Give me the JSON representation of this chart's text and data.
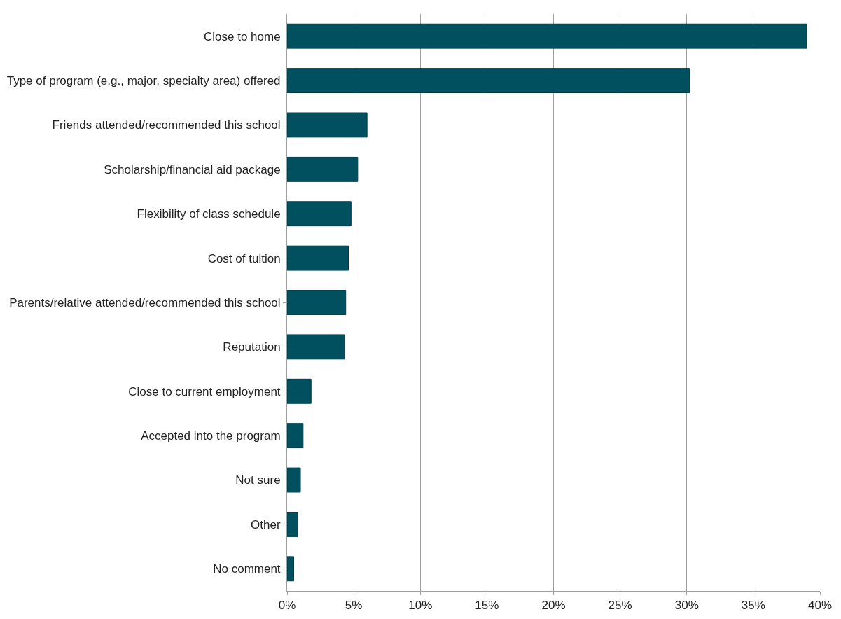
{
  "chart_data": {
    "type": "bar",
    "orientation": "horizontal",
    "categories": [
      "Close to home",
      "Type of program (e.g., major, specialty area) offered",
      "Friends attended/recommended this school",
      "Scholarship/financial aid package",
      "Flexibility of class schedule",
      "Cost of tuition",
      "Parents/relative attended/recommended this school",
      "Reputation",
      "Close to current employment",
      "Accepted into the program",
      "Not sure",
      "Other",
      "No comment"
    ],
    "values": [
      39,
      30.2,
      6,
      5.3,
      4.8,
      4.6,
      4.4,
      4.3,
      1.8,
      1.2,
      1,
      0.8,
      0.5
    ],
    "color": "#00505f",
    "xlim": [
      0,
      40
    ],
    "xticks": [
      {
        "value": 0,
        "label": "0%"
      },
      {
        "value": 5,
        "label": "5%"
      },
      {
        "value": 10,
        "label": "10%"
      },
      {
        "value": 15,
        "label": "15%"
      },
      {
        "value": 20,
        "label": "20%"
      },
      {
        "value": 25,
        "label": "25%"
      },
      {
        "value": 30,
        "label": "30%"
      },
      {
        "value": 35,
        "label": "35%"
      },
      {
        "value": 40,
        "label": "40%"
      }
    ],
    "grid": "x"
  }
}
